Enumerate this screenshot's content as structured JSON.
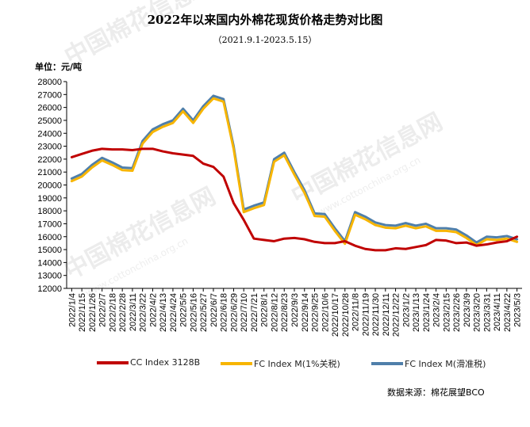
{
  "chart_data": {
    "type": "line",
    "title": "2022年以来国内外棉花现货价格走势对比图",
    "subtitle": "（2021.9.1-2023.5.15）",
    "ylabel": "单位：元/吨",
    "ylim": [
      12000,
      28000
    ],
    "yticks": [
      12000,
      13000,
      14000,
      15000,
      16000,
      17000,
      18000,
      19000,
      20000,
      21000,
      22000,
      23000,
      24000,
      25000,
      26000,
      27000,
      28000
    ],
    "categories": [
      "2022/1/4",
      "2022/1/15",
      "2022/1/26",
      "2022/2/7",
      "2022/2/18",
      "2022/2/28",
      "2022/3/11",
      "2022/3/22",
      "2022/4/2",
      "2022/4/13",
      "2022/4/24",
      "2022/5/5",
      "2022/5/16",
      "2022/5/27",
      "2022/6/7",
      "2022/6/18",
      "2022/6/29",
      "2022/7/10",
      "2022/7/21",
      "2022/8/1",
      "2022/8/12",
      "2022/8/23",
      "2022/9/3",
      "2022/9/14",
      "2022/9/25",
      "2022/10/6",
      "2022/10/17",
      "2022/10/28",
      "2022/11/8",
      "2022/11/19",
      "2022/11/30",
      "2022/12/11",
      "2022/12/22",
      "2023/1/2",
      "2023/1/13",
      "2023/1/24",
      "2023/2/4",
      "2023/2/15",
      "2023/2/26",
      "2023/3/9",
      "2023/3/20",
      "2023/3/31",
      "2023/4/11",
      "2023/4/22",
      "2023/5/3"
    ],
    "grid": false,
    "legend_position": "bottom",
    "series": [
      {
        "name": "CC Index 3128B",
        "color": "#c00000",
        "values": [
          22150,
          22400,
          22650,
          22800,
          22750,
          22750,
          22700,
          22800,
          22800,
          22600,
          22450,
          22350,
          22250,
          21650,
          21400,
          20650,
          18600,
          17300,
          15850,
          15750,
          15650,
          15850,
          15900,
          15800,
          15600,
          15500,
          15500,
          15650,
          15300,
          15050,
          14950,
          14950,
          15100,
          15050,
          15200,
          15350,
          15750,
          15700,
          15500,
          15550,
          15300,
          15400,
          15550,
          15650,
          16000
        ]
      },
      {
        "name": "FC Index M(1%关税)",
        "color": "#f7b500",
        "values": [
          20300,
          20650,
          21350,
          21900,
          21550,
          21150,
          21100,
          23200,
          24100,
          24500,
          24800,
          25700,
          24800,
          25900,
          26700,
          26450,
          22800,
          17900,
          18200,
          18450,
          21800,
          22300,
          20800,
          19400,
          17600,
          17550,
          16450,
          15450,
          17700,
          17350,
          16900,
          16700,
          16650,
          16850,
          16650,
          16800,
          16450,
          16450,
          16350,
          15900,
          15350,
          15800,
          15750,
          15850,
          15600
        ]
      },
      {
        "name": "FC Index M(滑准税)",
        "color": "#4f7faa",
        "values": [
          20500,
          20850,
          21550,
          22100,
          21750,
          21350,
          21300,
          23400,
          24300,
          24700,
          25000,
          25900,
          25000,
          26100,
          26900,
          26650,
          23000,
          18100,
          18400,
          18650,
          22000,
          22500,
          21000,
          19600,
          17800,
          17750,
          16650,
          15650,
          17900,
          17550,
          17100,
          16900,
          16850,
          17050,
          16850,
          17000,
          16650,
          16650,
          16550,
          16100,
          15550,
          16000,
          15950,
          16050,
          15800
        ]
      }
    ]
  },
  "source": "数据来源：棉花展望BCO",
  "watermark": {
    "cn": "中国棉花信息网",
    "en": "www.cottonchina.org.cn"
  }
}
